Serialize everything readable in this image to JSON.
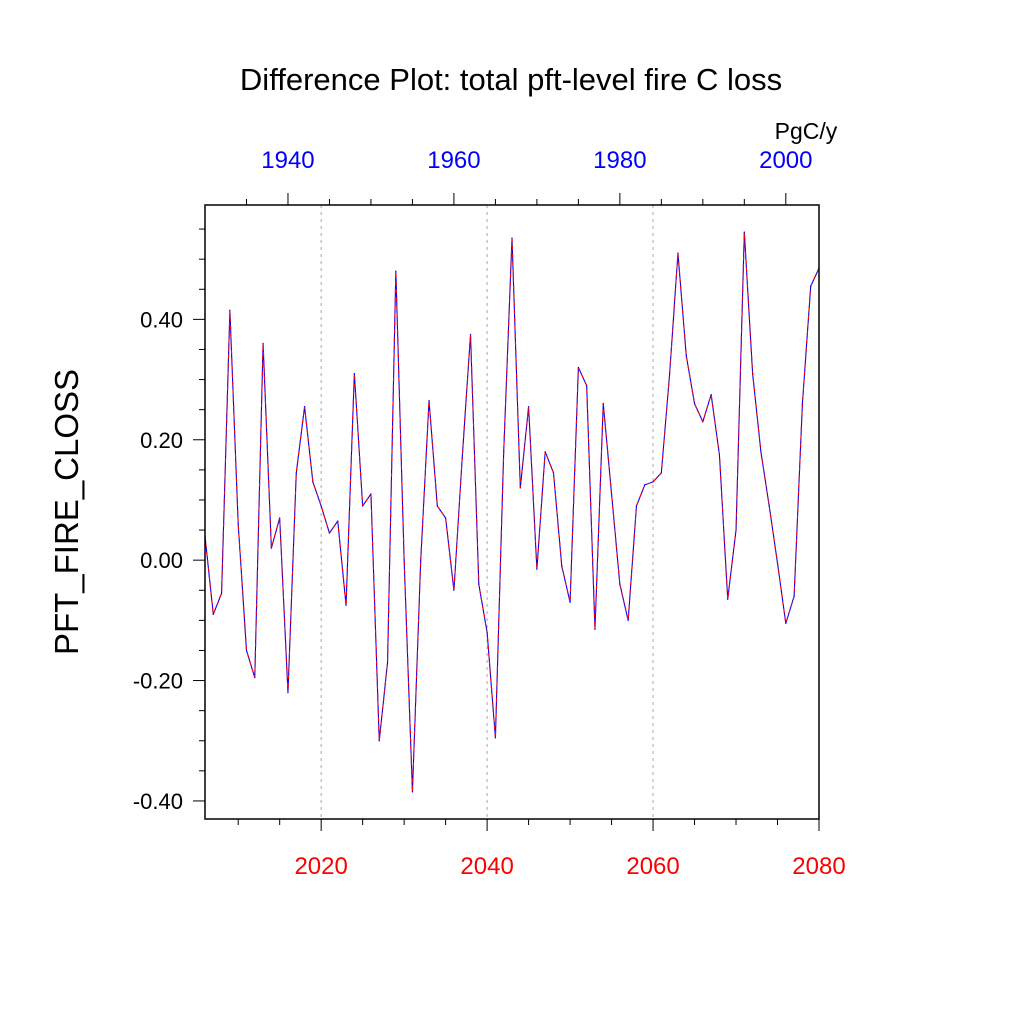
{
  "chart_data": {
    "type": "line",
    "title": "Difference Plot: total pft-level fire C loss",
    "ylabel": "PFT_FIRE_CLOSS",
    "units": "PgC/y",
    "ylim": [
      -0.43,
      0.59
    ],
    "y_ticks": [
      -0.4,
      -0.2,
      0.0,
      0.2,
      0.4
    ],
    "y_tick_labels": [
      "-0.40",
      "-0.20",
      "0.00",
      "0.20",
      "0.40"
    ],
    "x_bottom": {
      "lim": [
        2006,
        2080
      ],
      "ticks": [
        2020,
        2040,
        2060,
        2080
      ],
      "tick_labels": [
        "2020",
        "2040",
        "2060",
        "2080"
      ],
      "color": "#ff0000"
    },
    "x_top": {
      "lim": [
        1930,
        2004
      ],
      "ticks": [
        1940,
        1960,
        1980,
        2000
      ],
      "tick_labels": [
        "1940",
        "1960",
        "1980",
        "2000"
      ],
      "color": "#0000ff"
    },
    "grid": "vertical dashed at bottom-axis major ticks",
    "series": [
      {
        "color": "#0000ff",
        "style": "solid",
        "x": [
          2006,
          2007,
          2008,
          2009,
          2010,
          2011,
          2012,
          2013,
          2014,
          2015,
          2016,
          2017,
          2018,
          2019,
          2020,
          2021,
          2022,
          2023,
          2024,
          2025,
          2026,
          2027,
          2028,
          2029,
          2030,
          2031,
          2032,
          2033,
          2034,
          2035,
          2036,
          2037,
          2038,
          2039,
          2040,
          2041,
          2042,
          2043,
          2044,
          2045,
          2046,
          2047,
          2048,
          2049,
          2050,
          2051,
          2052,
          2053,
          2054,
          2055,
          2056,
          2057,
          2058,
          2059,
          2060,
          2061,
          2062,
          2063,
          2064,
          2065,
          2066,
          2067,
          2068,
          2069,
          2070,
          2071,
          2072,
          2073,
          2074,
          2075,
          2076,
          2077,
          2078,
          2079,
          2080
        ],
        "y": [
          0.04,
          -0.09,
          -0.055,
          0.415,
          0.06,
          -0.15,
          -0.195,
          0.36,
          0.02,
          0.07,
          -0.22,
          0.145,
          0.255,
          0.13,
          0.09,
          0.045,
          0.065,
          -0.075,
          0.31,
          0.09,
          0.11,
          -0.3,
          -0.17,
          0.48,
          0.0,
          -0.385,
          0.0,
          0.265,
          0.09,
          0.07,
          -0.05,
          0.17,
          0.375,
          -0.04,
          -0.12,
          -0.295,
          0.18,
          0.535,
          0.12,
          0.255,
          -0.015,
          0.18,
          0.145,
          -0.01,
          -0.07,
          0.32,
          0.29,
          -0.115,
          0.26,
          0.11,
          -0.04,
          -0.1,
          0.09,
          0.125,
          0.13,
          0.145,
          0.31,
          0.51,
          0.34,
          0.26,
          0.23,
          0.275,
          0.175,
          -0.065,
          0.05,
          0.545,
          0.31,
          0.18,
          0.09,
          -0.005,
          -0.105,
          -0.06,
          0.26,
          0.455,
          0.485
        ]
      },
      {
        "color": "#ff0000",
        "style": "dashed",
        "x": [
          2006,
          2007,
          2008,
          2009,
          2010,
          2011,
          2012,
          2013,
          2014,
          2015,
          2016,
          2017,
          2018,
          2019,
          2020,
          2021,
          2022,
          2023,
          2024,
          2025,
          2026,
          2027,
          2028,
          2029,
          2030,
          2031,
          2032,
          2033,
          2034,
          2035,
          2036,
          2037,
          2038,
          2039,
          2040,
          2041,
          2042,
          2043,
          2044,
          2045,
          2046,
          2047,
          2048,
          2049,
          2050,
          2051,
          2052,
          2053,
          2054,
          2055,
          2056,
          2057,
          2058,
          2059,
          2060,
          2061,
          2062,
          2063,
          2064,
          2065,
          2066,
          2067,
          2068,
          2069,
          2070,
          2071,
          2072,
          2073,
          2074,
          2075,
          2076,
          2077,
          2078,
          2079,
          2080
        ],
        "y": [
          0.04,
          -0.09,
          -0.055,
          0.415,
          0.06,
          -0.15,
          -0.195,
          0.36,
          0.02,
          0.07,
          -0.22,
          0.145,
          0.255,
          0.13,
          0.09,
          0.045,
          0.065,
          -0.075,
          0.31,
          0.09,
          0.11,
          -0.3,
          -0.17,
          0.48,
          0.0,
          -0.385,
          0.0,
          0.265,
          0.09,
          0.07,
          -0.05,
          0.17,
          0.375,
          -0.04,
          -0.12,
          -0.295,
          0.18,
          0.535,
          0.12,
          0.255,
          -0.015,
          0.18,
          0.145,
          -0.01,
          -0.07,
          0.32,
          0.29,
          -0.115,
          0.26,
          0.11,
          -0.04,
          -0.1,
          0.09,
          0.125,
          0.13,
          0.145,
          0.31,
          0.51,
          0.34,
          0.26,
          0.23,
          0.275,
          0.175,
          -0.065,
          0.05,
          0.545,
          0.31,
          0.18,
          0.09,
          -0.005,
          -0.105,
          -0.06,
          0.26,
          0.455,
          0.485
        ]
      }
    ]
  }
}
